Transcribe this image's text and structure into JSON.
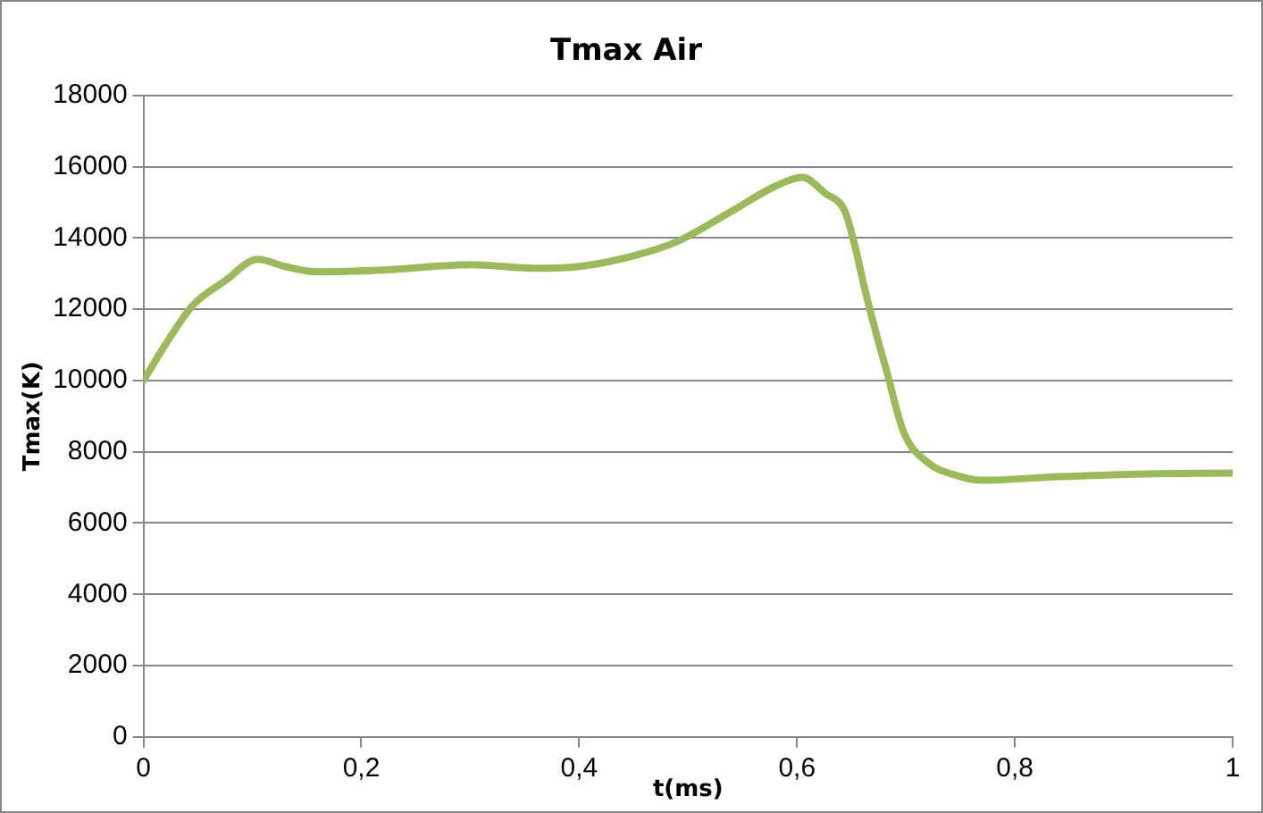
{
  "chart_data": {
    "type": "line",
    "title": "Tmax Air",
    "xlabel": "t(ms)",
    "ylabel": "Tmax(K)",
    "series": [
      {
        "color": "#9bbb59",
        "x": [
          0,
          0.02,
          0.045,
          0.075,
          0.105,
          0.13,
          0.16,
          0.22,
          0.3,
          0.36,
          0.4,
          0.45,
          0.49,
          0.54,
          0.58,
          0.605,
          0.626,
          0.644,
          0.653,
          0.662,
          0.672,
          0.682,
          0.698,
          0.72,
          0.745,
          0.77,
          0.84,
          0.92,
          1
        ],
        "values": [
          10000,
          11000,
          12100,
          12800,
          13400,
          13200,
          13050,
          13100,
          13250,
          13150,
          13200,
          13500,
          13900,
          14750,
          15450,
          15700,
          15250,
          14750,
          13800,
          12600,
          11400,
          10300,
          8550,
          7700,
          7350,
          7200,
          7300,
          7380,
          7400
        ]
      }
    ],
    "xlim": [
      0,
      1
    ],
    "xticks": [
      0,
      {
        "value": 0.2,
        "label": "0,2"
      },
      {
        "value": 0.4,
        "label": "0,4"
      },
      {
        "value": 0.6,
        "label": "0,6"
      },
      {
        "value": 0.8,
        "label": "0,8"
      },
      1
    ],
    "ylim": [
      0,
      18000
    ],
    "yticks": [
      0,
      2000,
      4000,
      6000,
      8000,
      10000,
      12000,
      14000,
      16000,
      18000
    ],
    "grid": "y",
    "legend": false,
    "marker": "none",
    "line_style": "solid"
  }
}
